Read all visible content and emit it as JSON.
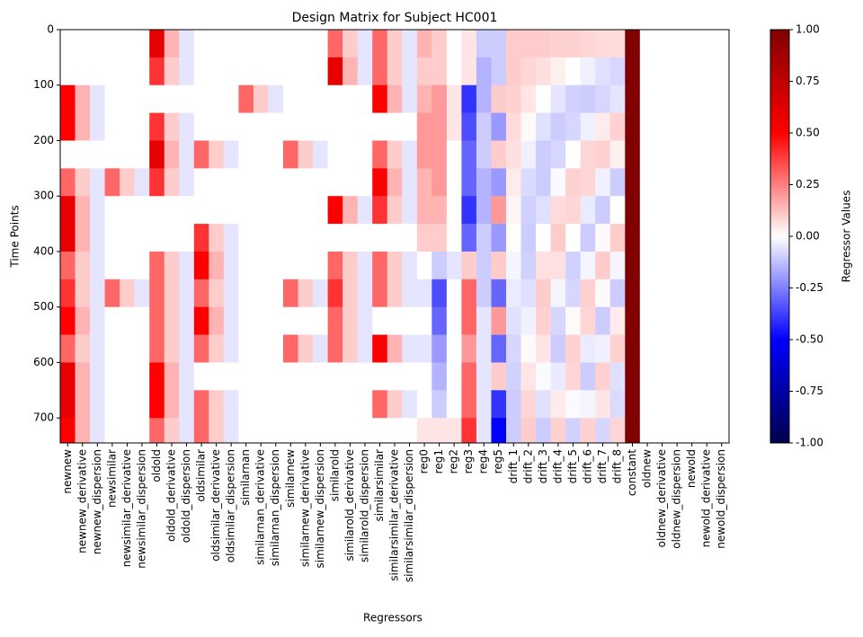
{
  "chart_data": {
    "type": "heatmap",
    "title": "Design Matrix for Subject HC001",
    "x_label": "Regressors",
    "y_label": "Time Points",
    "colorbar_label": "Regressor Values",
    "categories": [
      "newnew",
      "newnew_derivative",
      "newnew_dispersion",
      "newsimilar",
      "newsimilar_derivative",
      "newsimilar_dispersion",
      "oldold",
      "oldold_derivative",
      "oldold_dispersion",
      "oldsimilar",
      "oldsimilar_derivative",
      "oldsimilar_dispersion",
      "similarnan",
      "similarnan_derivative",
      "similarnan_dispersion",
      "similarnew",
      "similarnew_derivative",
      "similarnew_dispersion",
      "similarold",
      "similarold_derivative",
      "similarold_dispersion",
      "similarsimilar",
      "similarsimilar_derivative",
      "similarsimilar_dispersion",
      "reg0",
      "reg1",
      "reg2",
      "reg3",
      "reg4",
      "reg5",
      "drift_1",
      "drift_2",
      "drift_3",
      "drift_4",
      "drift_5",
      "drift_6",
      "drift_7",
      "drift_8",
      "constant",
      "oldnew",
      "oldnew_derivative",
      "oldnew_dispersion",
      "newold",
      "newold_derivative",
      "newold_dispersion"
    ],
    "y": [
      0,
      50,
      100,
      150,
      200,
      250,
      300,
      350,
      400,
      450,
      500,
      550,
      600,
      650,
      700
    ],
    "ylim": [
      745,
      0
    ],
    "yticks": [
      0,
      100,
      200,
      300,
      400,
      500,
      600,
      700
    ],
    "clim": [
      -1,
      1
    ],
    "colormap": [
      "#00004c",
      "#0000ff",
      "#ffffff",
      "#ff0000",
      "#800000"
    ],
    "cticks": [
      {
        "value": -1,
        "label": "-1.00"
      },
      {
        "value": -0.75,
        "label": "-0.75"
      },
      {
        "value": -0.5,
        "label": "-0.50"
      },
      {
        "value": -0.25,
        "label": "-0.25"
      },
      {
        "value": 0,
        "label": "0.00"
      },
      {
        "value": 0.25,
        "label": "0.25"
      },
      {
        "value": 0.5,
        "label": "0.50"
      },
      {
        "value": 0.75,
        "label": "0.75"
      },
      {
        "value": 1,
        "label": "1.00"
      }
    ],
    "values": [
      [
        0,
        0,
        0,
        0,
        0,
        0,
        0.6,
        0.15,
        -0.05,
        0,
        0,
        0,
        0,
        0,
        0,
        0,
        0,
        0,
        0.3,
        0.1,
        -0.05,
        0.3,
        0.1,
        -0.05,
        0.15,
        0.1,
        0,
        0.05,
        -0.1,
        -0.1,
        0.1,
        0.1,
        0.1,
        0.09,
        0.09,
        0.08,
        0.07,
        0.07,
        1,
        0,
        0,
        0,
        0,
        0,
        0
      ],
      [
        0,
        0,
        0,
        0,
        0,
        0,
        0.4,
        0.1,
        -0.05,
        0,
        0,
        0,
        0,
        0,
        0,
        0,
        0,
        0,
        0.6,
        0.15,
        -0.05,
        0.3,
        0.1,
        -0.05,
        0.1,
        0.1,
        0,
        0.05,
        -0.15,
        -0.1,
        0.1,
        0.08,
        0.06,
        0.03,
        0,
        -0.03,
        -0.06,
        -0.08,
        1,
        0,
        0,
        0,
        0,
        0,
        0
      ],
      [
        0.5,
        0.15,
        -0.05,
        0,
        0,
        0,
        0,
        0,
        0,
        0,
        0,
        0,
        0.3,
        0.1,
        -0.05,
        0,
        0,
        0,
        0,
        0,
        0,
        0.5,
        0.15,
        -0.05,
        0.15,
        0.2,
        0.05,
        -0.4,
        -0.15,
        0.1,
        0.09,
        0.05,
        0,
        -0.05,
        -0.09,
        -0.1,
        -0.08,
        -0.05,
        1,
        0,
        0,
        0,
        0,
        0,
        0
      ],
      [
        0.5,
        0.15,
        -0.05,
        0,
        0,
        0,
        0.4,
        0.1,
        -0.05,
        0,
        0,
        0,
        0,
        0,
        0,
        0,
        0,
        0,
        0,
        0,
        0,
        0,
        0,
        0,
        0.2,
        0.2,
        0.05,
        -0.35,
        -0.1,
        -0.2,
        0.07,
        0.01,
        -0.06,
        -0.1,
        -0.08,
        -0.03,
        0.04,
        0.09,
        1,
        0,
        0,
        0,
        0,
        0,
        0
      ],
      [
        0,
        0,
        0,
        0,
        0,
        0,
        0.6,
        0.15,
        -0.05,
        0.3,
        0.1,
        -0.05,
        0,
        0,
        0,
        0.3,
        0.1,
        -0.05,
        0,
        0,
        0,
        0.3,
        0.1,
        -0.05,
        0.2,
        0.2,
        0,
        -0.3,
        -0.1,
        0.1,
        0.06,
        -0.03,
        -0.1,
        -0.08,
        0,
        0.08,
        0.09,
        0.03,
        1,
        0,
        0,
        0,
        0,
        0,
        0
      ],
      [
        0.3,
        0.1,
        -0.05,
        0.3,
        0.1,
        -0.05,
        0.4,
        0.1,
        -0.05,
        0,
        0,
        0,
        0,
        0,
        0,
        0,
        0,
        0,
        0,
        0,
        0,
        0.5,
        0.15,
        -0.05,
        0.15,
        0.2,
        0,
        -0.3,
        -0.15,
        -0.2,
        0.04,
        -0.07,
        -0.1,
        -0.01,
        0.09,
        0.08,
        -0.03,
        -0.1,
        1,
        0,
        0,
        0,
        0,
        0,
        0
      ],
      [
        0.6,
        0.15,
        -0.05,
        0,
        0,
        0,
        0,
        0,
        0,
        0,
        0,
        0,
        0,
        0,
        0,
        0,
        0,
        0,
        0.5,
        0.15,
        -0.05,
        0.4,
        0.1,
        -0.05,
        0.15,
        0.15,
        0,
        -0.4,
        -0.15,
        0.2,
        0.02,
        -0.09,
        -0.06,
        0.07,
        0.08,
        -0.04,
        -0.1,
        0,
        1,
        0,
        0,
        0,
        0,
        0,
        0
      ],
      [
        0.6,
        0.15,
        -0.05,
        0,
        0,
        0,
        0,
        0,
        0,
        0.4,
        0.1,
        -0.05,
        0,
        0,
        0,
        0,
        0,
        0,
        0,
        0,
        0,
        0,
        0,
        0,
        0.1,
        0.1,
        0,
        -0.3,
        -0.1,
        -0.2,
        0,
        -0.1,
        0,
        0.1,
        0,
        -0.1,
        0.01,
        0.1,
        1,
        0,
        0,
        0,
        0,
        0,
        0
      ],
      [
        0.3,
        0.1,
        -0.05,
        0,
        0,
        0,
        0.3,
        0.1,
        -0.05,
        0.5,
        0.15,
        -0.05,
        0,
        0,
        0,
        0,
        0,
        0,
        0.3,
        0.1,
        -0.05,
        0.3,
        0.1,
        -0.05,
        0,
        -0.1,
        -0.05,
        0.1,
        -0.1,
        0.1,
        -0.02,
        -0.09,
        0.06,
        0.06,
        -0.09,
        -0.02,
        0.1,
        -0.02,
        1,
        0,
        0,
        0,
        0,
        0,
        0
      ],
      [
        0.4,
        0.1,
        -0.05,
        0.3,
        0.1,
        -0.05,
        0.3,
        0.1,
        -0.05,
        0.3,
        0.1,
        -0.05,
        0,
        0,
        0,
        0.3,
        0.1,
        -0.05,
        0.4,
        0.1,
        -0.05,
        0.3,
        0.1,
        -0.05,
        -0.05,
        -0.35,
        0,
        0.3,
        -0.1,
        -0.3,
        -0.04,
        -0.06,
        0.1,
        -0.02,
        -0.08,
        0.09,
        0.01,
        -0.1,
        1,
        0,
        0,
        0,
        0,
        0,
        0
      ],
      [
        0.5,
        0.15,
        -0.05,
        0,
        0,
        0,
        0.3,
        0.1,
        -0.05,
        0.5,
        0.15,
        -0.05,
        0,
        0,
        0,
        0,
        0,
        0,
        0.3,
        0.1,
        -0.05,
        0,
        0,
        0,
        0,
        -0.3,
        0,
        0.3,
        -0.05,
        0.2,
        -0.06,
        -0.03,
        0.09,
        -0.08,
        0.01,
        0.08,
        -0.1,
        0.04,
        1,
        0,
        0,
        0,
        0,
        0,
        0
      ],
      [
        0.3,
        0.1,
        -0.05,
        0,
        0,
        0,
        0.3,
        0.1,
        -0.05,
        0.3,
        0.1,
        -0.05,
        0,
        0,
        0,
        0.3,
        0.1,
        -0.05,
        0.3,
        0.1,
        -0.05,
        0.5,
        0.15,
        -0.05,
        -0.05,
        -0.2,
        0,
        0.2,
        -0.05,
        -0.3,
        -0.08,
        0.01,
        0.05,
        -0.1,
        0.09,
        -0.04,
        -0.03,
        0.09,
        1,
        0,
        0,
        0,
        0,
        0,
        0
      ],
      [
        0.6,
        0.15,
        -0.05,
        0,
        0,
        0,
        0.5,
        0.15,
        -0.05,
        0,
        0,
        0,
        0,
        0,
        0,
        0,
        0,
        0,
        0,
        0,
        0,
        0,
        0,
        0,
        0,
        -0.15,
        0,
        0.3,
        -0.05,
        0.1,
        -0.09,
        0.05,
        -0.01,
        -0.04,
        0.08,
        -0.1,
        0.09,
        -0.06,
        1,
        0,
        0,
        0,
        0,
        0,
        0
      ],
      [
        0.6,
        0.15,
        -0.05,
        0,
        0,
        0,
        0.5,
        0.15,
        -0.05,
        0.3,
        0.1,
        -0.05,
        0,
        0,
        0,
        0,
        0,
        0,
        0,
        0,
        0,
        0.3,
        0.1,
        -0.05,
        0,
        -0.1,
        0,
        0.3,
        -0.05,
        -0.4,
        -0.1,
        0.08,
        -0.06,
        0.04,
        -0.01,
        -0.02,
        0.05,
        -0.07,
        1,
        0,
        0,
        0,
        0,
        0,
        0
      ],
      [
        0.5,
        0.15,
        -0.05,
        0,
        0,
        0,
        0.3,
        0.1,
        -0.05,
        0.3,
        0.1,
        -0.05,
        0,
        0,
        0,
        0,
        0,
        0,
        0,
        0,
        0,
        0,
        0,
        0,
        0.05,
        0.05,
        0.05,
        0.4,
        -0.05,
        -0.5,
        -0.1,
        0.1,
        -0.1,
        0.09,
        -0.09,
        0.09,
        -0.08,
        0.08,
        1,
        0,
        0,
        0,
        0,
        0,
        0
      ]
    ]
  }
}
